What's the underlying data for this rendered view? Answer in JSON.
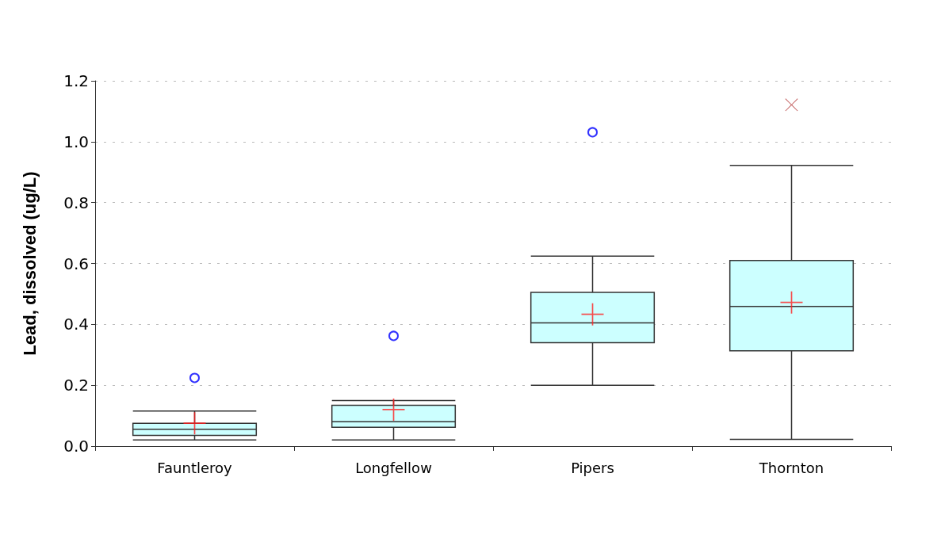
{
  "chart_data": {
    "type": "box",
    "ylabel": "Lead, dissolved (ug/L)",
    "categories": [
      "Fauntleroy",
      "Longfellow",
      "Pipers",
      "Thornton"
    ],
    "series": [
      {
        "color": "#ccffff",
        "boxes": [
          {
            "low": 0.02,
            "q1": 0.035,
            "median": 0.055,
            "q3": 0.075,
            "high": 0.115,
            "mean": 0.075,
            "outliers": [
              0.224
            ]
          },
          {
            "low": 0.02,
            "q1": 0.062,
            "median": 0.08,
            "q3": 0.134,
            "high": 0.15,
            "mean": 0.12,
            "outliers": [
              0.362
            ]
          },
          {
            "low": 0.2,
            "q1": 0.34,
            "median": 0.405,
            "q3": 0.505,
            "high": 0.624,
            "mean": 0.433,
            "outliers": [
              1.031
            ]
          },
          {
            "low": 0.022,
            "q1": 0.313,
            "median": 0.459,
            "q3": 0.61,
            "high": 0.922,
            "mean": 0.472
          }
        ]
      },
      {
        "type": "scatter",
        "color": "#b03030",
        "marker": "cross",
        "x": [
          "Thornton"
        ],
        "values": [
          1.121
        ]
      }
    ],
    "ylim": [
      0,
      1.2
    ],
    "yticks": [
      {
        "value": 0,
        "label": "0.0"
      },
      0.2,
      0.4,
      0.6,
      0.8,
      {
        "value": 1,
        "label": "1.0"
      },
      1.2
    ],
    "grid": "y"
  }
}
